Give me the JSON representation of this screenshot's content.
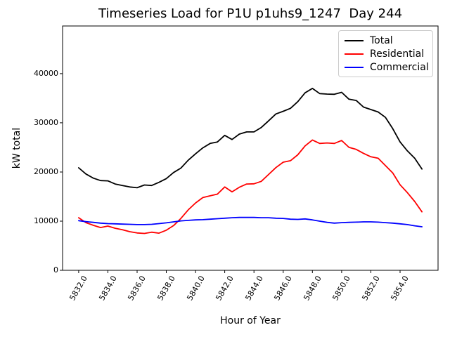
{
  "chart_data": {
    "type": "line",
    "title": "Timeseries Load for P1U p1uhs9_1247  Day 244",
    "xlabel": "Hour of Year",
    "ylabel": "kW total",
    "xlim": [
      5830.9,
      5856.6
    ],
    "ylim": [
      0,
      49700
    ],
    "grid": false,
    "background": "#ffffff",
    "spine_color": "#000000",
    "xtick_values": [
      5832,
      5834,
      5836,
      5838,
      5840,
      5842,
      5844,
      5846,
      5848,
      5850,
      5852,
      5854
    ],
    "xtick_labels": [
      "5832.0",
      "5834.0",
      "5836.0",
      "5838.0",
      "5840.0",
      "5842.0",
      "5844.0",
      "5846.0",
      "5848.0",
      "5850.0",
      "5852.0",
      "5854.0"
    ],
    "ytick_values": [
      0,
      10000,
      20000,
      30000,
      40000
    ],
    "ytick_labels": [
      "0",
      "10000",
      "20000",
      "30000",
      "40000"
    ],
    "legend": {
      "position": "upper right",
      "entries": [
        "Total",
        "Residential",
        "Commercial"
      ]
    },
    "x": [
      5832.0,
      5832.5,
      5833.0,
      5833.5,
      5834.0,
      5834.5,
      5835.0,
      5835.5,
      5836.0,
      5836.5,
      5837.0,
      5837.5,
      5838.0,
      5838.5,
      5839.0,
      5839.5,
      5840.0,
      5840.5,
      5841.0,
      5841.5,
      5842.0,
      5842.5,
      5843.0,
      5843.5,
      5844.0,
      5844.5,
      5845.0,
      5845.5,
      5846.0,
      5846.5,
      5847.0,
      5847.5,
      5848.0,
      5848.5,
      5849.0,
      5849.5,
      5850.0,
      5850.5,
      5851.0,
      5851.5,
      5852.0,
      5852.5,
      5853.0,
      5853.5,
      5854.0,
      5854.5,
      5855.0,
      5855.5
    ],
    "series": [
      {
        "name": "Total",
        "color": "#000000",
        "values": [
          20850,
          19600,
          18750,
          18250,
          18200,
          17550,
          17250,
          16950,
          16800,
          17350,
          17250,
          17900,
          18650,
          19900,
          20800,
          22400,
          23700,
          24900,
          25800,
          26100,
          27450,
          26600,
          27700,
          28150,
          28150,
          29050,
          30400,
          31800,
          32350,
          32950,
          34300,
          36100,
          37000,
          35950,
          35850,
          35800,
          36200,
          34800,
          34550,
          33200,
          32700,
          32200,
          31100,
          28800,
          26100,
          24300,
          22800,
          20600
        ]
      },
      {
        "name": "Residential",
        "color": "#ff0000",
        "values": [
          10700,
          9700,
          9150,
          8700,
          9000,
          8550,
          8250,
          7850,
          7600,
          7500,
          7750,
          7550,
          8150,
          9100,
          10550,
          12300,
          13700,
          14800,
          15150,
          15500,
          16950,
          15950,
          16900,
          17550,
          17600,
          18100,
          19500,
          20900,
          22000,
          22300,
          23500,
          25300,
          26500,
          25800,
          25900,
          25800,
          26400,
          25000,
          24600,
          23800,
          23100,
          22800,
          21300,
          19800,
          17400,
          15800,
          14000,
          11900
        ]
      },
      {
        "name": "Commercial",
        "color": "#0000ff",
        "values": [
          10100,
          9900,
          9750,
          9600,
          9500,
          9450,
          9400,
          9350,
          9300,
          9300,
          9350,
          9500,
          9650,
          9850,
          10050,
          10150,
          10250,
          10300,
          10400,
          10500,
          10600,
          10700,
          10750,
          10750,
          10750,
          10700,
          10700,
          10600,
          10550,
          10400,
          10350,
          10450,
          10250,
          10000,
          9750,
          9600,
          9700,
          9750,
          9800,
          9850,
          9850,
          9800,
          9700,
          9600,
          9450,
          9300,
          9050,
          8850
        ]
      }
    ]
  }
}
